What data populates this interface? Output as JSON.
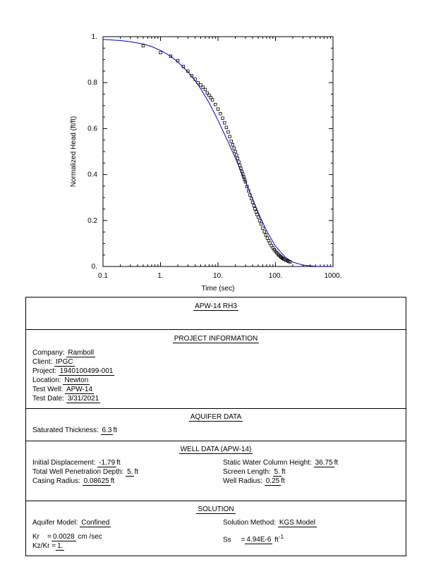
{
  "chart_data": {
    "type": "scatter",
    "xlabel": "Time  (sec)",
    "ylabel": "Normalized Head (ft/ft)",
    "x_scale": "log",
    "xlim": [
      0.1,
      1000
    ],
    "ylim": [
      0,
      1
    ],
    "x_ticks": [
      "0.1",
      "1.",
      "10.",
      "100.",
      "1000."
    ],
    "y_ticks": [
      "0.",
      "0.2",
      "0.4",
      "0.6",
      "0.8",
      "1."
    ],
    "points": {
      "x": [
        0.5,
        1.0,
        1.5,
        2.0,
        2.5,
        3.0,
        3.5,
        4.0,
        4.5,
        5.0,
        5.5,
        6.0,
        6.5,
        7.0,
        7.5,
        8.0,
        9.0,
        10.0,
        11.0,
        12.0,
        13.0,
        14.0,
        15.0,
        16.0,
        17.0,
        18.0,
        19.0,
        20.0,
        21.0,
        22.0,
        23.0,
        24.0,
        25.0,
        26.0,
        27.0,
        28.0,
        29.0,
        30.0,
        32.0,
        34.0,
        36.0,
        38.0,
        40.0,
        42.0,
        44.0,
        46.0,
        48.0,
        50.0,
        53.0,
        56.0,
        60.0,
        64.0,
        68.0,
        72.0,
        76.0,
        80.0,
        85.0,
        90.0,
        95.0,
        100.0,
        105.0,
        110.0,
        115.0,
        120.0,
        125.0,
        130.0,
        135.0,
        140.0,
        150.0,
        160.0,
        170.0,
        180.0
      ],
      "y": [
        0.96,
        0.93,
        0.915,
        0.895,
        0.87,
        0.85,
        0.83,
        0.815,
        0.8,
        0.79,
        0.78,
        0.77,
        0.755,
        0.745,
        0.735,
        0.725,
        0.705,
        0.685,
        0.665,
        0.645,
        0.625,
        0.605,
        0.585,
        0.565,
        0.545,
        0.53,
        0.515,
        0.5,
        0.485,
        0.47,
        0.455,
        0.44,
        0.427,
        0.414,
        0.402,
        0.39,
        0.379,
        0.368,
        0.348,
        0.329,
        0.311,
        0.295,
        0.279,
        0.265,
        0.251,
        0.238,
        0.226,
        0.215,
        0.199,
        0.185,
        0.167,
        0.151,
        0.137,
        0.124,
        0.113,
        0.102,
        0.091,
        0.081,
        0.073,
        0.066,
        0.06,
        0.054,
        0.049,
        0.045,
        0.041,
        0.037,
        0.035,
        0.032,
        0.028,
        0.025,
        0.022,
        0.02
      ]
    },
    "curve": {
      "x": [
        0.1,
        0.2,
        0.3,
        0.5,
        0.7,
        1.0,
        1.5,
        2.0,
        3.0,
        4.0,
        5.0,
        7.0,
        10.0,
        15.0,
        20.0,
        30.0,
        40.0,
        50.0,
        70.0,
        100.0,
        150.0,
        200.0,
        300.0,
        500.0,
        1000.0
      ],
      "y": [
        0.988,
        0.983,
        0.978,
        0.968,
        0.957,
        0.94,
        0.915,
        0.89,
        0.847,
        0.808,
        0.773,
        0.712,
        0.636,
        0.541,
        0.472,
        0.37,
        0.293,
        0.235,
        0.155,
        0.088,
        0.039,
        0.019,
        0.006,
        0.001,
        0.0
      ]
    },
    "colors": {
      "curve": "#0000cc",
      "points": "#000000"
    }
  },
  "report": {
    "title": "APW-14  RH3",
    "project": {
      "heading": "PROJECT   INFORMATION",
      "fields": [
        {
          "label": "Company:",
          "value": "Ramboll"
        },
        {
          "label": "Client:",
          "value": "IPGC"
        },
        {
          "label": "Project:",
          "value": "1940100499-001"
        },
        {
          "label": "Location:",
          "value": "Newton"
        },
        {
          "label": "Test Well:",
          "value": "APW-14"
        },
        {
          "label": "Test Date:",
          "value": "3/31/2021"
        }
      ]
    },
    "aquifer": {
      "heading": "AQUIFER   DATA",
      "thickness_label": "Saturated  Thickness:",
      "thickness_value": "6.3",
      "thickness_unit": "ft"
    },
    "well": {
      "heading": "WELL  DATA  (APW-14)",
      "left": [
        {
          "label": "Initial  Displacement:",
          "value": "-1.79",
          "unit": "ft"
        },
        {
          "label": "Total  Well  Penetration  Depth:",
          "value": "5.",
          "unit": "ft"
        },
        {
          "label": "Casing Radius:",
          "value": "0.08625",
          "unit": "ft"
        }
      ],
      "right": [
        {
          "label": "Static  Water  Column  Height:",
          "value": "36.75",
          "unit": "ft"
        },
        {
          "label": "Screen Length:",
          "value": "5.",
          "unit": "ft"
        },
        {
          "label": "Well Radius:",
          "value": "0.25",
          "unit": "ft"
        }
      ]
    },
    "solution": {
      "heading": "SOLUTION",
      "model_label": "Aquifer Model:",
      "model_value": "Confined",
      "method_label": "Solution  Method:",
      "method_value": "KGS  Model",
      "kr_label": "Kr",
      "kr_value": "0.0028",
      "kr_unit": "cm /sec",
      "ss_label": "Ss",
      "ss_value": "4.94E-6",
      "ss_unit": "ft",
      "ss_exp": "-1",
      "kzkr_label": "Kz/Kr",
      "kzkr_value": "1."
    }
  }
}
